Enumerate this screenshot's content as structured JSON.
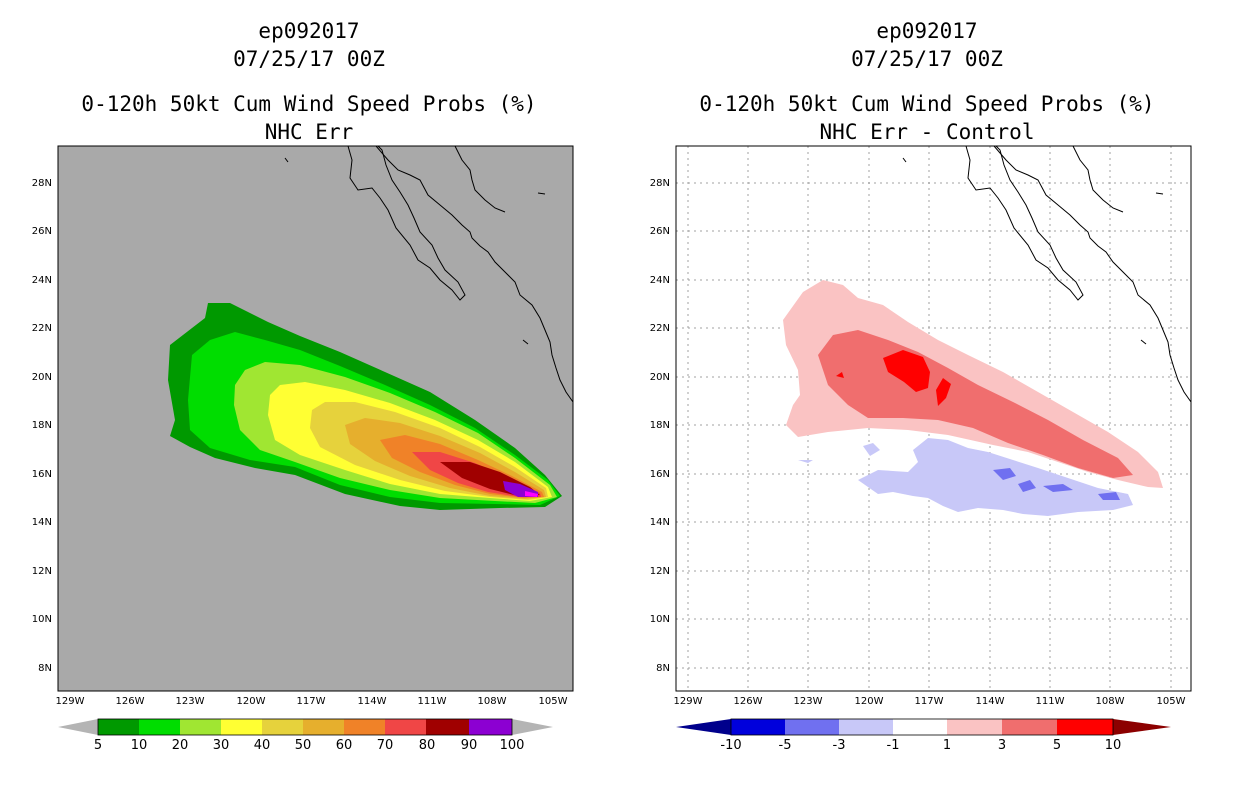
{
  "panels": [
    {
      "title_storm": "ep092017",
      "title_date": "07/25/17 00Z",
      "title_product": "0-120h 50kt Cum Wind Speed Probs (%)",
      "title_sub": "NHC Err",
      "background_color": "#a9a9a9",
      "colorbar": {
        "labels": [
          "5",
          "10",
          "20",
          "30",
          "40",
          "50",
          "60",
          "70",
          "80",
          "90",
          "100"
        ],
        "colors": [
          "#009900",
          "#00dd00",
          "#a0e632",
          "#ffff33",
          "#e6d23c",
          "#e6af2d",
          "#f08228",
          "#f04646",
          "#a00000",
          "#8c00d2"
        ],
        "arrow_color": "#b4b4b4"
      }
    },
    {
      "title_storm": "ep092017",
      "title_date": "07/25/17 00Z",
      "title_product": "0-120h 50kt Cum Wind Speed Probs (%)",
      "title_sub": "NHC Err - Control",
      "background_color": "#ffffff",
      "colorbar": {
        "labels": [
          "-10",
          "-5",
          "-3",
          "-1",
          "1",
          "3",
          "5",
          "10"
        ],
        "colors": [
          "#0000dc",
          "#7070f0",
          "#c8c8f8",
          "#ffffff",
          "#fac3c3",
          "#f06e6e",
          "#ff0000"
        ],
        "arrow_left_color": "#00008c",
        "arrow_right_color": "#8c0000"
      }
    }
  ],
  "axes": {
    "lat_ticks": [
      "28N",
      "26N",
      "24N",
      "22N",
      "20N",
      "18N",
      "16N",
      "14N",
      "12N",
      "10N",
      "8N"
    ],
    "lon_ticks": [
      "129W",
      "126W",
      "123W",
      "120W",
      "117W",
      "114W",
      "111W",
      "108W",
      "105W"
    ]
  }
}
